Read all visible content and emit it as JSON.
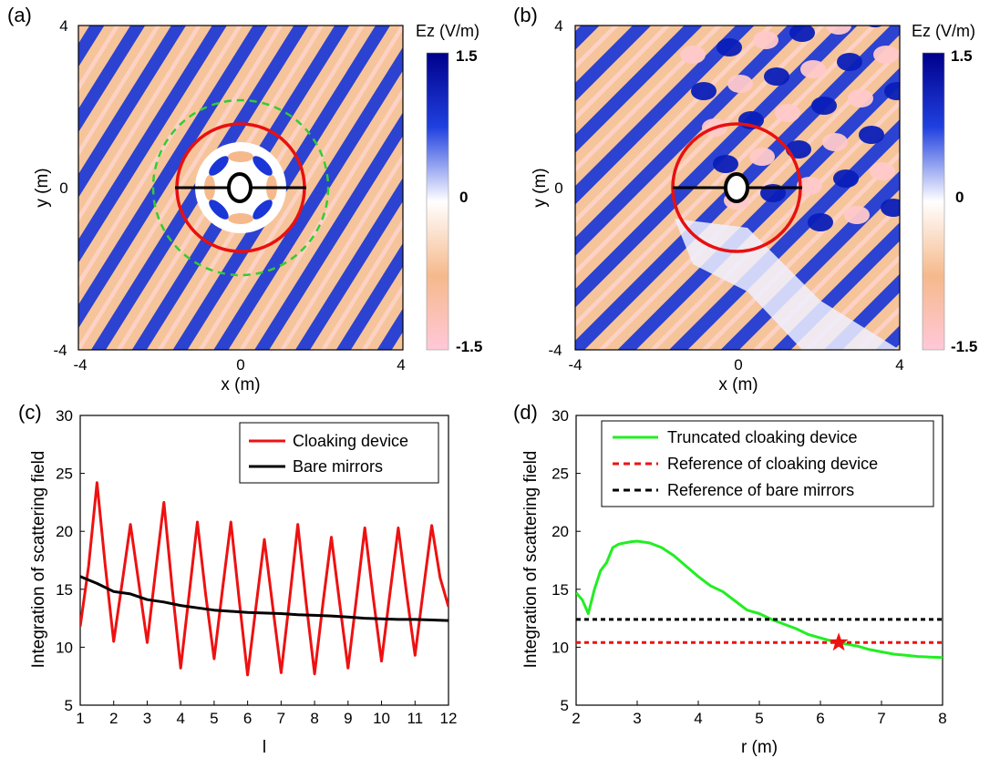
{
  "chart_data": [
    {
      "type": "heatmap",
      "panel_label": "(a)",
      "xlabel": "x (m)",
      "ylabel": "y (m)",
      "xlim": [
        -4,
        4
      ],
      "ylim": [
        -4,
        4
      ],
      "xticks": [
        "-4",
        "0",
        "4"
      ],
      "yticks": [
        "4",
        "0",
        "-4"
      ],
      "colorbar": {
        "title": "Ez (V/m)",
        "max": "1.5",
        "mid": "0",
        "min": "-1.5",
        "colors": [
          "#ffc0cb",
          "#f6b98c",
          "#ffffff",
          "#1030d0",
          "#00008b"
        ]
      },
      "overlays": {
        "cloak_circle_radius": 1.5,
        "outer_dashed_circle_radius": 2.1,
        "mirror_half_length": 1.5,
        "cloak_color": "#ff0000",
        "dashed_color": "#33cc33"
      }
    },
    {
      "type": "heatmap",
      "panel_label": "(b)",
      "xlabel": "x (m)",
      "ylabel": "y (m)",
      "xlim": [
        -4,
        4
      ],
      "ylim": [
        -4,
        4
      ],
      "xticks": [
        "-4",
        "0",
        "4"
      ],
      "yticks": [
        "4",
        "0",
        "-4"
      ],
      "colorbar": {
        "title": "Ez (V/m)",
        "max": "1.5",
        "mid": "0",
        "min": "-1.5"
      },
      "overlays": {
        "cloak_circle_radius": 1.5,
        "mirror_half_length": 1.5,
        "cloak_color": "#ff0000"
      }
    },
    {
      "type": "line",
      "panel_label": "(c)",
      "xlabel": "l",
      "ylabel": "Integration of scattering field",
      "xlim": [
        1,
        12
      ],
      "ylim": [
        5,
        30
      ],
      "xticks": [
        "1",
        "2",
        "3",
        "4",
        "5",
        "6",
        "7",
        "8",
        "9",
        "10",
        "11",
        "12"
      ],
      "yticks": [
        "5",
        "10",
        "15",
        "20",
        "25",
        "30"
      ],
      "legend_position": "top-right",
      "series": [
        {
          "name": "Cloaking device",
          "color": "#ee1111",
          "x": [
            1.0,
            1.25,
            1.5,
            1.75,
            2.0,
            2.25,
            2.5,
            2.75,
            3.0,
            3.25,
            3.5,
            3.75,
            4.0,
            4.25,
            4.5,
            4.75,
            5.0,
            5.25,
            5.5,
            5.75,
            6.0,
            6.25,
            6.5,
            6.75,
            7.0,
            7.25,
            7.5,
            7.75,
            8.0,
            8.25,
            8.5,
            8.75,
            9.0,
            9.25,
            9.5,
            9.75,
            10.0,
            10.25,
            10.5,
            10.75,
            11.0,
            11.25,
            11.5,
            11.75,
            12.0
          ],
          "y": [
            11.8,
            17,
            24.2,
            17,
            10.5,
            15.5,
            20.6,
            15.5,
            10.4,
            16.5,
            22.5,
            15,
            8.2,
            14.5,
            20.8,
            14.5,
            9.0,
            15,
            20.8,
            14,
            7.6,
            13.5,
            19.3,
            13.5,
            7.8,
            14,
            20.6,
            13.8,
            7.7,
            13.8,
            19.5,
            13.8,
            8.2,
            14.2,
            20.3,
            14.3,
            8.8,
            14.6,
            20.3,
            14.6,
            9.3,
            15,
            20.5,
            16,
            13.5
          ]
        },
        {
          "name": "Bare mirrors",
          "color": "#000000",
          "x": [
            1,
            1.5,
            2,
            2.5,
            3,
            3.5,
            4,
            4.5,
            5,
            5.5,
            6,
            6.5,
            7,
            7.5,
            8,
            8.5,
            9,
            9.5,
            10,
            10.5,
            11,
            11.5,
            12
          ],
          "y": [
            16.1,
            15.5,
            14.8,
            14.6,
            14.1,
            13.9,
            13.6,
            13.4,
            13.2,
            13.1,
            13.0,
            12.95,
            12.9,
            12.8,
            12.75,
            12.7,
            12.6,
            12.5,
            12.45,
            12.4,
            12.4,
            12.35,
            12.3
          ]
        }
      ]
    },
    {
      "type": "line",
      "panel_label": "(d)",
      "xlabel": "r (m)",
      "ylabel": "Integration of scattering field",
      "xlim": [
        2,
        8
      ],
      "ylim": [
        5,
        30
      ],
      "xticks": [
        "2",
        "3",
        "4",
        "5",
        "6",
        "7",
        "8"
      ],
      "yticks": [
        "5",
        "10",
        "15",
        "20",
        "25",
        "30"
      ],
      "legend_position": "top-left",
      "series": [
        {
          "name": "Truncated cloaking device",
          "color": "#22ee22",
          "x": [
            2.0,
            2.1,
            2.2,
            2.3,
            2.4,
            2.5,
            2.6,
            2.7,
            2.8,
            2.9,
            3.0,
            3.2,
            3.4,
            3.6,
            3.8,
            4.0,
            4.2,
            4.4,
            4.6,
            4.8,
            5.0,
            5.2,
            5.4,
            5.6,
            5.8,
            6.0,
            6.2,
            6.4,
            6.6,
            6.8,
            7.0,
            7.2,
            7.4,
            7.6,
            7.8,
            8.0
          ],
          "y": [
            14.7,
            14.1,
            12.9,
            15.0,
            16.6,
            17.3,
            18.6,
            18.9,
            19.0,
            19.1,
            19.15,
            19.0,
            18.6,
            17.9,
            17.0,
            16.1,
            15.3,
            14.8,
            14.0,
            13.2,
            12.9,
            12.4,
            12.0,
            11.6,
            11.1,
            10.8,
            10.5,
            10.3,
            10.1,
            9.8,
            9.6,
            9.4,
            9.3,
            9.2,
            9.15,
            9.1
          ]
        },
        {
          "name": "Reference of cloaking device",
          "color": "#ee1111",
          "constant": 10.4
        },
        {
          "name": "Reference of bare mirrors",
          "color": "#000000",
          "constant": 12.4
        }
      ],
      "marker": {
        "symbol": "star",
        "x": 6.3,
        "y": 10.4,
        "color": "#ee1111"
      }
    }
  ]
}
